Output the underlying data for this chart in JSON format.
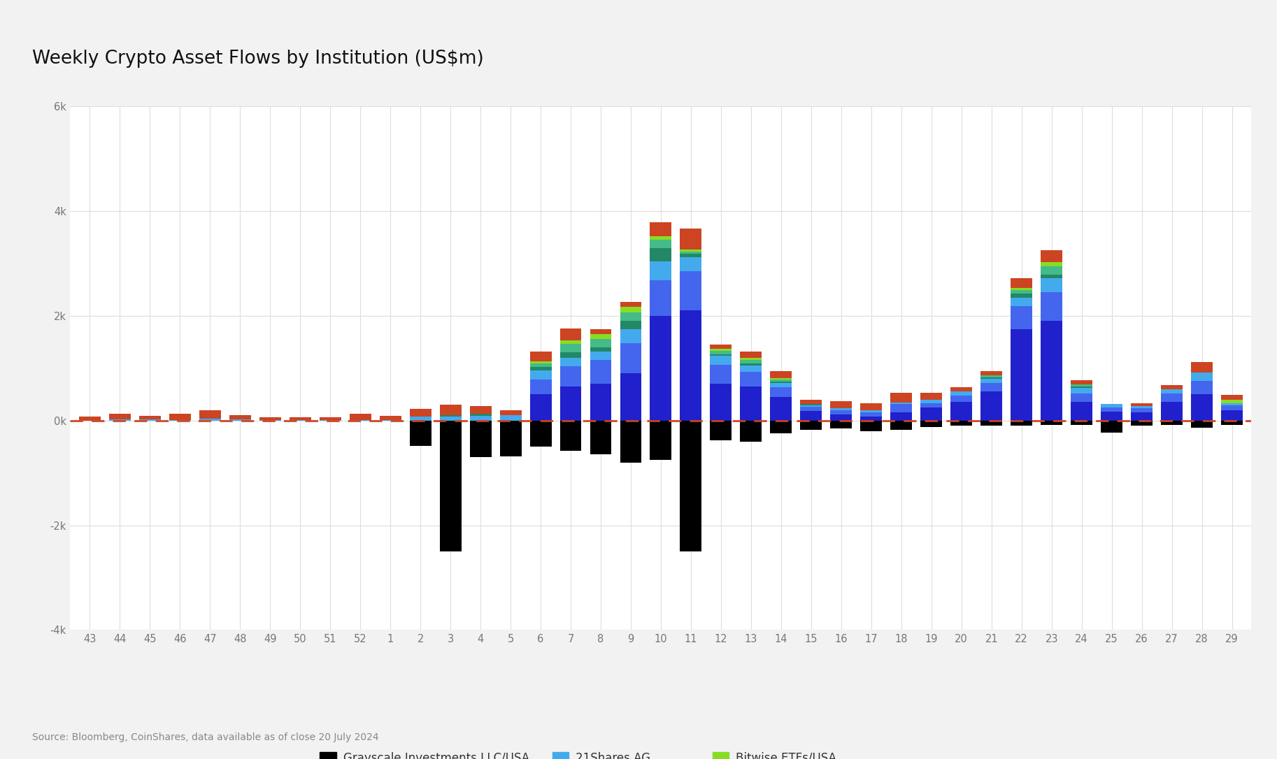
{
  "title": "Weekly Crypto Asset Flows by Institution (US$m)",
  "source": "Source: Bloomberg, CoinShares, data available as of close 20 July 2024",
  "x_labels": [
    "43",
    "44",
    "45",
    "46",
    "47",
    "48",
    "49",
    "50",
    "51",
    "52",
    "1",
    "2",
    "3",
    "4",
    "5",
    "6",
    "7",
    "8",
    "9",
    "10",
    "11",
    "12",
    "13",
    "14",
    "15",
    "16",
    "17",
    "18",
    "19",
    "20",
    "21",
    "22",
    "23",
    "24",
    "25",
    "26",
    "27",
    "28",
    "29"
  ],
  "ylim": [
    -4000,
    6000
  ],
  "yticks": [
    -4000,
    -2000,
    0,
    2000,
    4000,
    6000
  ],
  "ytick_labels": [
    "-4k",
    "-2k",
    "0k",
    "2k",
    "4k",
    "6k"
  ],
  "background_color": "#f2f2f2",
  "plot_bg_color": "#ffffff",
  "series_colors": {
    "Grayscale": "#000000",
    "iShares": "#2020cc",
    "Fidelity": "#4466ee",
    "21Shares": "#44aaee",
    "CoinShares": "#228866",
    "ARK": "#44bb88",
    "Bitwise": "#88dd22",
    "Other": "#cc4422"
  },
  "grayscale_vals": [
    0,
    0,
    0,
    0,
    0,
    0,
    0,
    0,
    0,
    0,
    0,
    -480,
    -2500,
    -700,
    -680,
    -500,
    -580,
    -650,
    -800,
    -750,
    -2500,
    -380,
    -400,
    -250,
    -180,
    -150,
    -200,
    -180,
    -120,
    -100,
    -100,
    -100,
    -80,
    -80,
    -230,
    -100,
    -80,
    -140,
    -80
  ],
  "ishares_vals": [
    0,
    0,
    0,
    0,
    0,
    0,
    0,
    0,
    0,
    0,
    0,
    0,
    0,
    0,
    0,
    500,
    650,
    700,
    900,
    2000,
    2100,
    700,
    650,
    450,
    180,
    120,
    80,
    150,
    250,
    350,
    550,
    1750,
    1900,
    350,
    170,
    160,
    350,
    500,
    200
  ],
  "fidelity_vals": [
    0,
    0,
    0,
    0,
    0,
    0,
    0,
    0,
    0,
    0,
    0,
    0,
    0,
    0,
    0,
    280,
    380,
    450,
    580,
    680,
    750,
    360,
    280,
    180,
    80,
    80,
    80,
    160,
    80,
    130,
    170,
    430,
    550,
    170,
    80,
    80,
    170,
    260,
    90
  ],
  "shares21_vals": [
    0,
    25,
    25,
    15,
    35,
    25,
    15,
    15,
    15,
    15,
    15,
    70,
    70,
    90,
    100,
    170,
    170,
    170,
    270,
    360,
    270,
    170,
    120,
    80,
    35,
    35,
    35,
    35,
    70,
    70,
    70,
    170,
    270,
    100,
    70,
    35,
    70,
    160,
    35
  ],
  "coinshares_vals": [
    0,
    0,
    0,
    0,
    0,
    0,
    0,
    0,
    0,
    0,
    0,
    0,
    35,
    35,
    0,
    70,
    100,
    70,
    160,
    250,
    70,
    35,
    35,
    35,
    20,
    0,
    0,
    0,
    0,
    0,
    35,
    70,
    70,
    35,
    0,
    0,
    0,
    0,
    0
  ],
  "ark_vals": [
    0,
    0,
    0,
    0,
    0,
    0,
    0,
    0,
    0,
    0,
    0,
    0,
    0,
    0,
    0,
    70,
    160,
    160,
    160,
    160,
    35,
    70,
    70,
    35,
    0,
    0,
    0,
    0,
    0,
    0,
    35,
    70,
    160,
    35,
    0,
    0,
    0,
    0,
    0
  ],
  "bitwise_vals": [
    0,
    0,
    0,
    0,
    0,
    0,
    0,
    0,
    0,
    0,
    0,
    0,
    0,
    0,
    0,
    35,
    70,
    100,
    100,
    70,
    35,
    35,
    35,
    35,
    0,
    0,
    0,
    0,
    0,
    0,
    0,
    35,
    70,
    0,
    0,
    0,
    0,
    0,
    70
  ],
  "other_vals": [
    80,
    110,
    70,
    110,
    160,
    80,
    50,
    50,
    50,
    110,
    80,
    150,
    200,
    150,
    90,
    190,
    230,
    90,
    90,
    270,
    400,
    80,
    130,
    130,
    80,
    130,
    130,
    180,
    130,
    80,
    80,
    190,
    230,
    80,
    0,
    50,
    90,
    190,
    90
  ]
}
